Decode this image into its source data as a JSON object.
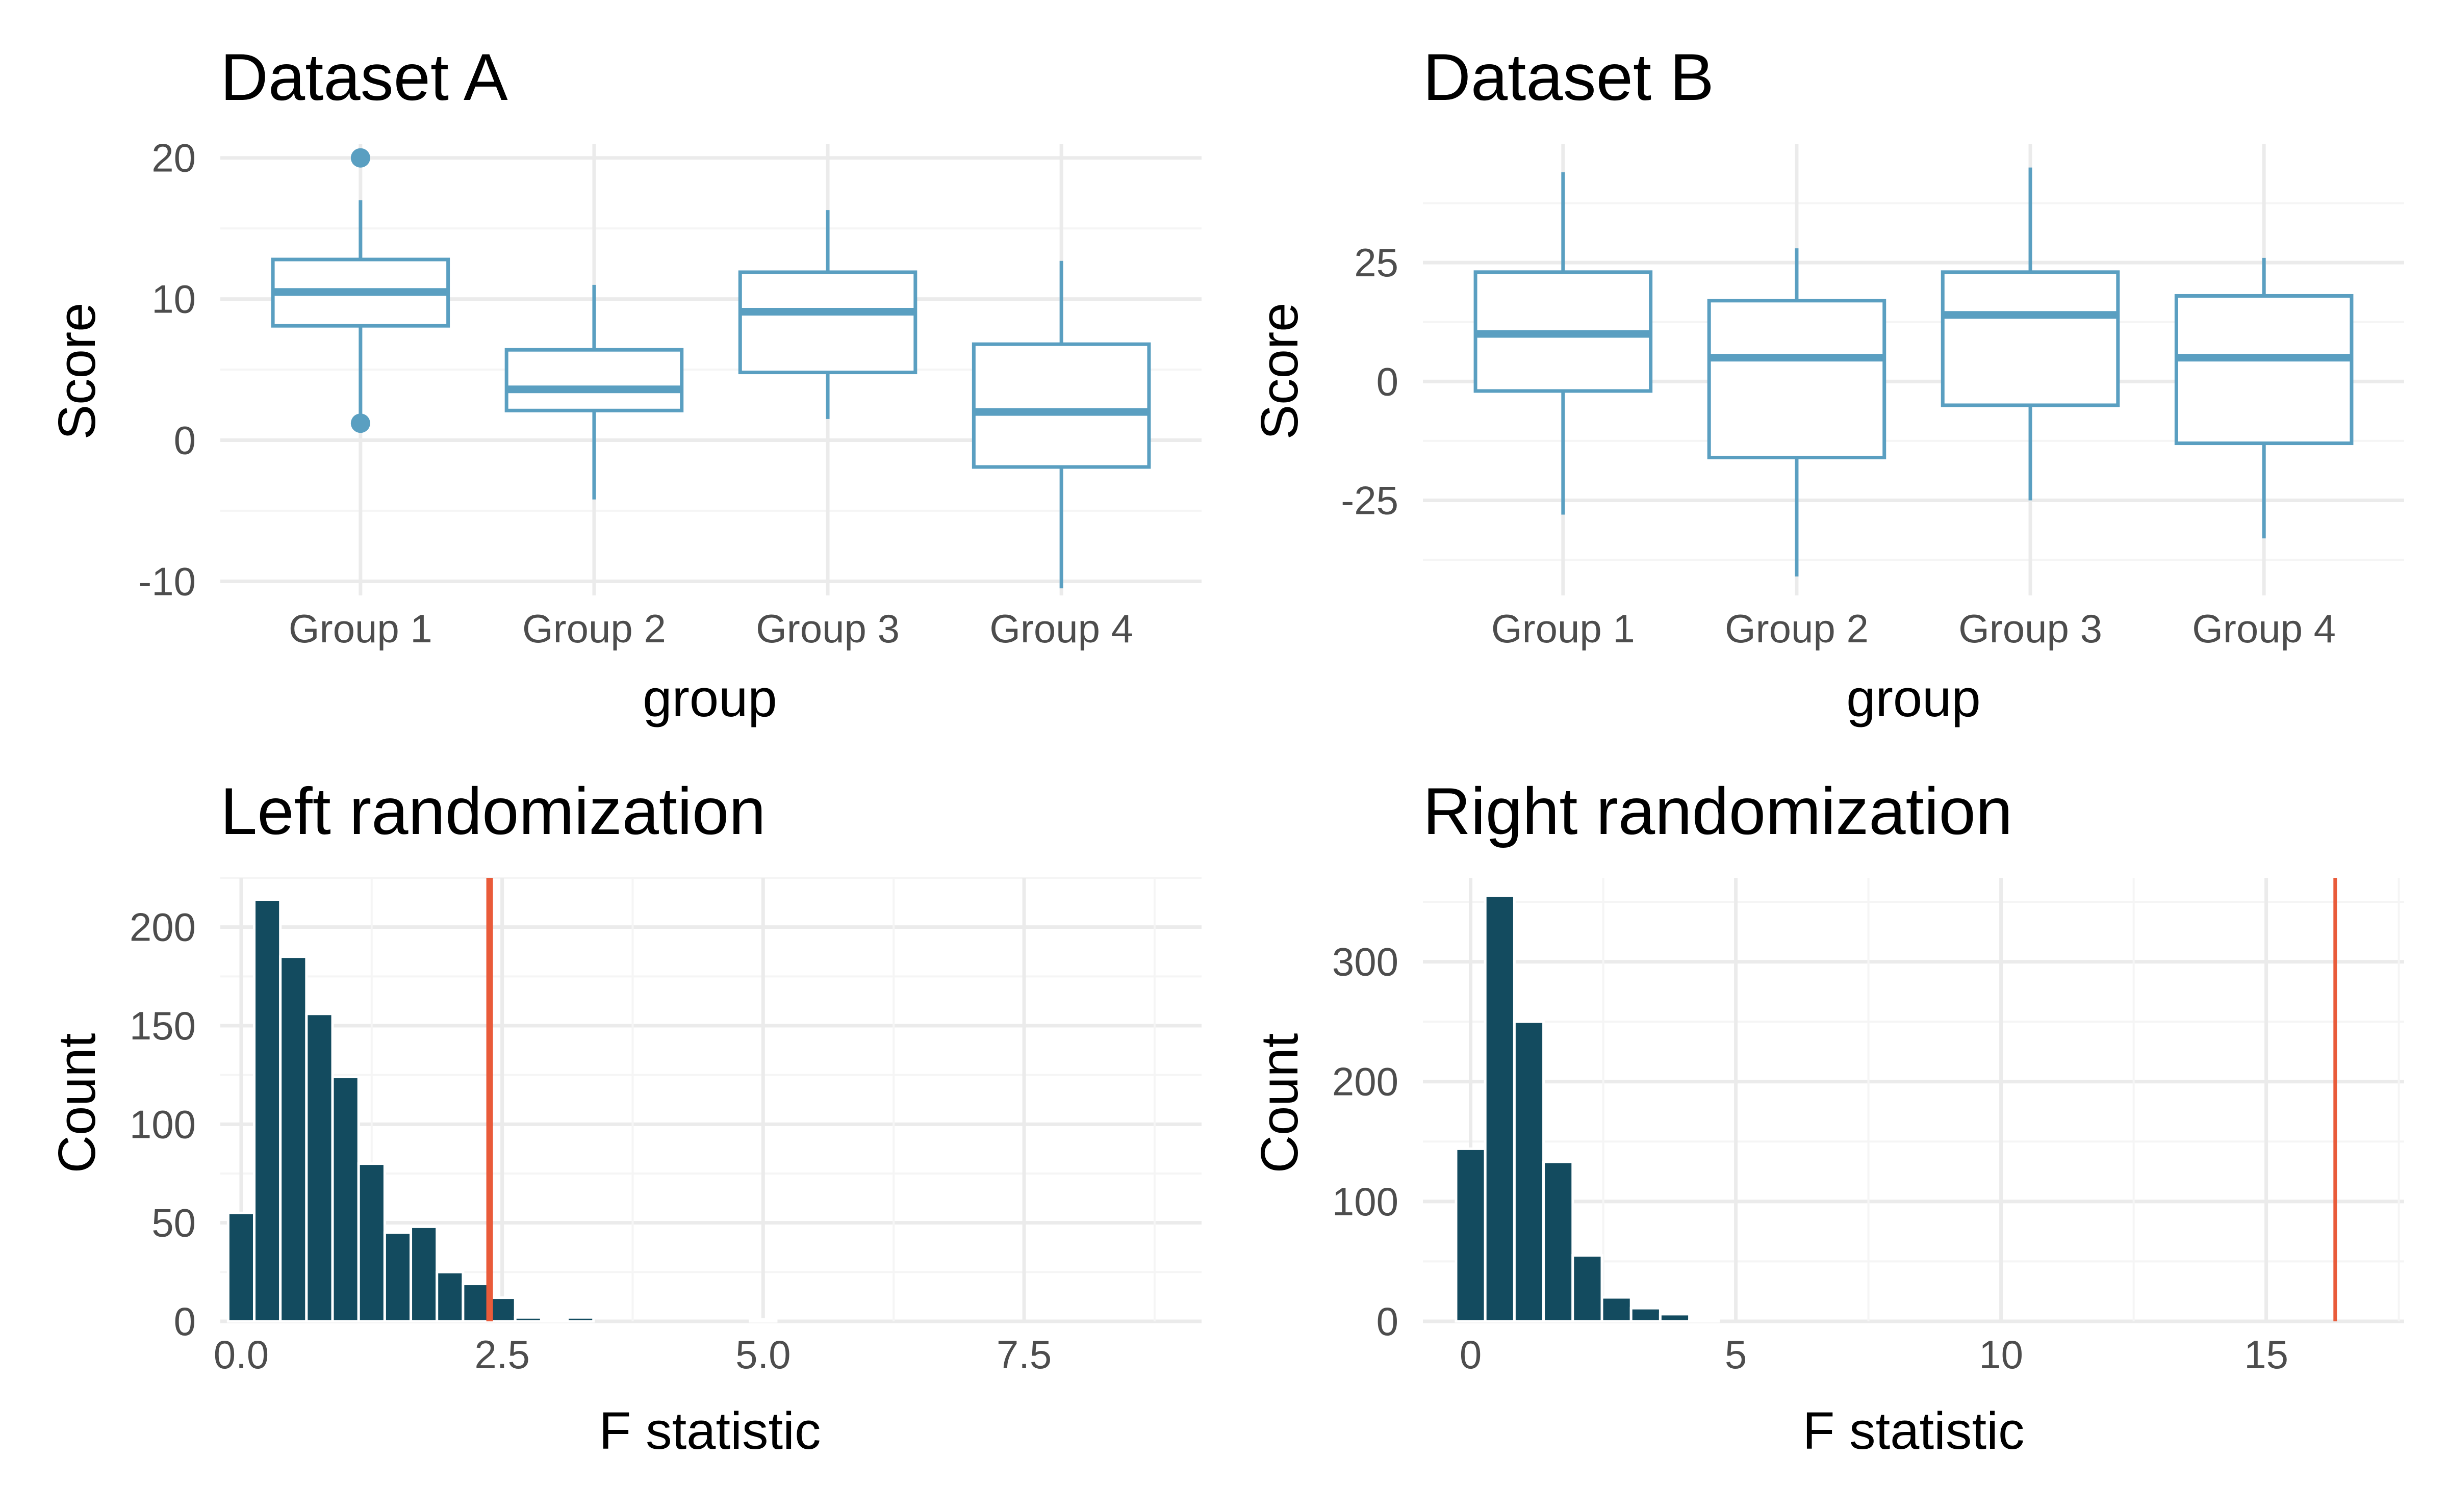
{
  "colors": {
    "box": "#5a9fc1",
    "hist": "#134b5f",
    "observed_line": "#e95b3a",
    "grid_major": "#ebebeb",
    "grid_minor": "#f5f5f5"
  },
  "chart_data": [
    {
      "type": "box",
      "title": "Dataset A",
      "xlabel": "group",
      "ylabel": "Score",
      "categories": [
        "Group 1",
        "Group 2",
        "Group 3",
        "Group 4"
      ],
      "ylim": [
        -11,
        21
      ],
      "yticks": [
        -10,
        0,
        10,
        20
      ],
      "ytick_labels": [
        "-10",
        "0",
        "10",
        "20"
      ],
      "boxes": [
        {
          "group": "Group 1",
          "lower_whisker": 1.2,
          "q1": 8.1,
          "median": 10.5,
          "q3": 12.8,
          "upper_whisker": 17.0,
          "outliers": [
            20,
            1.2
          ]
        },
        {
          "group": "Group 2",
          "lower_whisker": -4.2,
          "q1": 2.1,
          "median": 3.6,
          "q3": 6.4,
          "upper_whisker": 11.0,
          "outliers": []
        },
        {
          "group": "Group 3",
          "lower_whisker": 1.5,
          "q1": 4.8,
          "median": 9.1,
          "q3": 11.9,
          "upper_whisker": 16.3,
          "outliers": []
        },
        {
          "group": "Group 4",
          "lower_whisker": -10.5,
          "q1": -1.9,
          "median": 2.0,
          "q3": 6.8,
          "upper_whisker": 12.7,
          "outliers": []
        }
      ]
    },
    {
      "type": "box",
      "title": "Dataset B",
      "xlabel": "group",
      "ylabel": "Score",
      "categories": [
        "Group 1",
        "Group 2",
        "Group 3",
        "Group 4"
      ],
      "ylim": [
        -45,
        50
      ],
      "yticks": [
        -25,
        0,
        25
      ],
      "ytick_labels": [
        "-25",
        "0",
        "25"
      ],
      "boxes": [
        {
          "group": "Group 1",
          "lower_whisker": -28,
          "q1": -2,
          "median": 10,
          "q3": 23,
          "upper_whisker": 44,
          "outliers": []
        },
        {
          "group": "Group 2",
          "lower_whisker": -41,
          "q1": -16,
          "median": 5,
          "q3": 17,
          "upper_whisker": 28,
          "outliers": []
        },
        {
          "group": "Group 3",
          "lower_whisker": -25,
          "q1": -5,
          "median": 14,
          "q3": 23,
          "upper_whisker": 45,
          "outliers": []
        },
        {
          "group": "Group 4",
          "lower_whisker": -33,
          "q1": -13,
          "median": 5,
          "q3": 18,
          "upper_whisker": 26,
          "outliers": []
        }
      ]
    },
    {
      "type": "bar",
      "subtype": "histogram",
      "title": "Left randomization",
      "xlabel": "F statistic",
      "ylabel": "Count",
      "xlim": [
        -0.2,
        9.2
      ],
      "ylim": [
        0,
        225
      ],
      "xticks": [
        0,
        2.5,
        5,
        7.5
      ],
      "xtick_labels": [
        "0.0",
        "2.5",
        "5.0",
        "7.5"
      ],
      "yticks": [
        0,
        50,
        100,
        150,
        200
      ],
      "ytick_labels": [
        "0",
        "50",
        "100",
        "150",
        "200"
      ],
      "bin_width": 0.25,
      "bin_centers": [
        0,
        0.25,
        0.5,
        0.75,
        1,
        1.25,
        1.5,
        1.75,
        2,
        2.25,
        2.5,
        2.75,
        3,
        3.25,
        3.5,
        3.75,
        4,
        4.25,
        4.5,
        4.75,
        5,
        5.25,
        5.5,
        5.75,
        6,
        6.25,
        6.5,
        6.75,
        7,
        7.25,
        7.5,
        7.75,
        8,
        8.25,
        8.5,
        8.75
      ],
      "counts": [
        55,
        214,
        185,
        156,
        124,
        80,
        45,
        48,
        25,
        19,
        12,
        2,
        1,
        2,
        0,
        0,
        0,
        0,
        0,
        0,
        1,
        0,
        0,
        0,
        0,
        0,
        0,
        0,
        0,
        0,
        0,
        0,
        0,
        0,
        0,
        0
      ],
      "observed_F": 2.38
    },
    {
      "type": "bar",
      "subtype": "histogram",
      "title": "Right randomization",
      "xlabel": "F statistic",
      "ylabel": "Count",
      "xlim": [
        -0.9,
        17.6
      ],
      "ylim": [
        0,
        370
      ],
      "xticks": [
        0,
        5,
        10,
        15
      ],
      "xtick_labels": [
        "0",
        "5",
        "10",
        "15"
      ],
      "yticks": [
        0,
        100,
        200,
        300
      ],
      "ytick_labels": [
        "0",
        "100",
        "200",
        "300"
      ],
      "bin_width": 0.55,
      "bin_centers": [
        0,
        0.55,
        1.1,
        1.65,
        2.2,
        2.75,
        3.3,
        3.85,
        4.4,
        4.95,
        5.5,
        6.05,
        6.6,
        7.15,
        7.7,
        8.25,
        8.8,
        9.35,
        9.9,
        10.45,
        11,
        11.55,
        12.1,
        12.65,
        13.2,
        13.75,
        14.3,
        14.85,
        15.4,
        15.95,
        16.5
      ],
      "counts": [
        144,
        355,
        250,
        133,
        55,
        20,
        11,
        6,
        1,
        0,
        0,
        0,
        0,
        0,
        0,
        0,
        0,
        0,
        0,
        0,
        0,
        0,
        0,
        0,
        0,
        0,
        0,
        0,
        0,
        0,
        0
      ],
      "observed_F": 16.3
    }
  ]
}
